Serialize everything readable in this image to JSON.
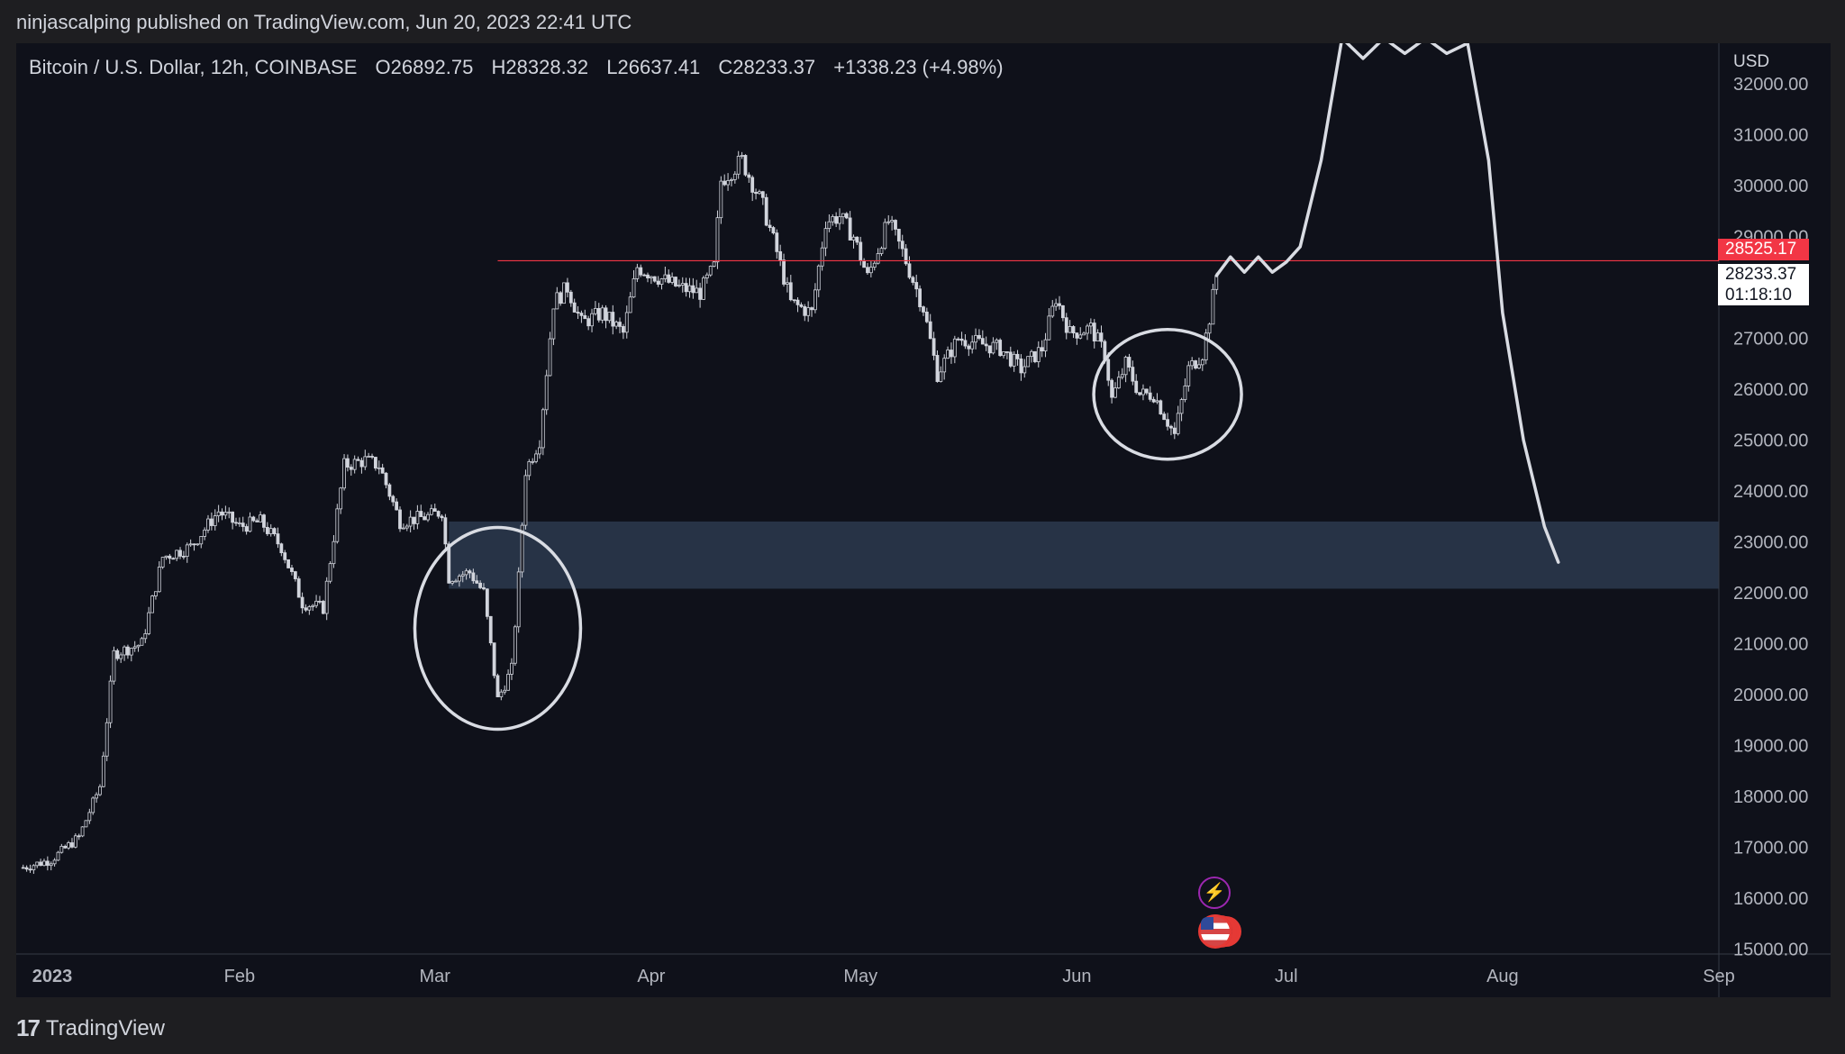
{
  "header": {
    "text": "ninjascalping published on TradingView.com, Jun 20, 2023 22:41 UTC"
  },
  "legend": {
    "symbol": "Bitcoin / U.S. Dollar, 12h, COINBASE",
    "open": "O26892.75",
    "high": "H28328.32",
    "low": "L26637.41",
    "close": "C28233.37",
    "change": "+1338.23 (+4.98%)"
  },
  "price_axis": {
    "currency": "USD"
  },
  "tags": {
    "resistance_price": "28525.17",
    "last_price": "28233.37",
    "countdown": "01:18:10"
  },
  "footer": {
    "brand": "TradingView",
    "logo_glyph": "17"
  },
  "colors": {
    "background": "#0f111a",
    "candle": "#d1d4dc",
    "resistance_line": "#f23645",
    "zone": "#2b3a4f",
    "drawing": "#d9dce3"
  },
  "chart_data": {
    "type": "candlestick",
    "timeframe": "12h",
    "y_ticks": [
      15000,
      16000,
      17000,
      18000,
      19000,
      20000,
      21000,
      22000,
      23000,
      24000,
      25000,
      26000,
      27000,
      28000,
      29000,
      30000,
      31000,
      32000
    ],
    "x_ticks": [
      "2023",
      "Feb",
      "Mar",
      "Apr",
      "May",
      "Jun",
      "Jul",
      "Aug",
      "Sep"
    ],
    "ylim": [
      14900,
      32800
    ],
    "resistance_line": 28525.17,
    "support_zone": [
      22080,
      23400
    ],
    "path_points": [
      [
        "2023-01-01",
        16600
      ],
      [
        "2023-01-05",
        16750
      ],
      [
        "2023-01-09",
        17200
      ],
      [
        "2023-01-12",
        18200
      ],
      [
        "2023-01-14",
        20800
      ],
      [
        "2023-01-18",
        21000
      ],
      [
        "2023-01-21",
        22700
      ],
      [
        "2023-01-25",
        22900
      ],
      [
        "2023-01-29",
        23600
      ],
      [
        "2023-02-01",
        23300
      ],
      [
        "2023-02-04",
        23400
      ],
      [
        "2023-02-07",
        22900
      ],
      [
        "2023-02-10",
        21800
      ],
      [
        "2023-02-13",
        21700
      ],
      [
        "2023-02-16",
        24500
      ],
      [
        "2023-02-19",
        24600
      ],
      [
        "2023-02-21",
        24500
      ],
      [
        "2023-02-24",
        23400
      ],
      [
        "2023-02-28",
        23500
      ],
      [
        "2023-03-02",
        23600
      ],
      [
        "2023-03-03",
        22300
      ],
      [
        "2023-03-06",
        22400
      ],
      [
        "2023-03-08",
        22000
      ],
      [
        "2023-03-10",
        19900
      ],
      [
        "2023-03-12",
        20500
      ],
      [
        "2023-03-13",
        22300
      ],
      [
        "2023-03-14",
        24400
      ],
      [
        "2023-03-16",
        25000
      ],
      [
        "2023-03-18",
        27700
      ],
      [
        "2023-03-20",
        28000
      ],
      [
        "2023-03-22",
        27300
      ],
      [
        "2023-03-25",
        27500
      ],
      [
        "2023-03-28",
        27100
      ],
      [
        "2023-03-30",
        28400
      ],
      [
        "2023-04-02",
        28200
      ],
      [
        "2023-04-05",
        28000
      ],
      [
        "2023-04-08",
        27900
      ],
      [
        "2023-04-10",
        28400
      ],
      [
        "2023-04-11",
        30100
      ],
      [
        "2023-04-14",
        30500
      ],
      [
        "2023-04-17",
        29600
      ],
      [
        "2023-04-19",
        28700
      ],
      [
        "2023-04-21",
        27700
      ],
      [
        "2023-04-24",
        27500
      ],
      [
        "2023-04-26",
        29300
      ],
      [
        "2023-04-28",
        29400
      ],
      [
        "2023-04-30",
        29000
      ],
      [
        "2023-05-02",
        28200
      ],
      [
        "2023-05-05",
        29300
      ],
      [
        "2023-05-07",
        28700
      ],
      [
        "2023-05-10",
        27600
      ],
      [
        "2023-05-12",
        26300
      ],
      [
        "2023-05-15",
        27000
      ],
      [
        "2023-05-18",
        26900
      ],
      [
        "2023-05-21",
        26800
      ],
      [
        "2023-05-24",
        26400
      ],
      [
        "2023-05-27",
        26800
      ],
      [
        "2023-05-29",
        27800
      ],
      [
        "2023-05-31",
        27100
      ],
      [
        "2023-06-03",
        27200
      ],
      [
        "2023-06-05",
        26700
      ],
      [
        "2023-06-06",
        25800
      ],
      [
        "2023-06-08",
        26500
      ],
      [
        "2023-06-10",
        25900
      ],
      [
        "2023-06-12",
        25900
      ],
      [
        "2023-06-15",
        25100
      ],
      [
        "2023-06-17",
        26400
      ],
      [
        "2023-06-19",
        26700
      ],
      [
        "2023-06-20",
        27400
      ],
      [
        "2023-06-21",
        28233.37
      ]
    ],
    "projection_points": [
      [
        "2023-06-21",
        28233
      ],
      [
        "2023-06-23",
        28600
      ],
      [
        "2023-06-25",
        28300
      ],
      [
        "2023-06-27",
        28600
      ],
      [
        "2023-06-29",
        28300
      ],
      [
        "2023-07-01",
        28500
      ],
      [
        "2023-07-03",
        28800
      ],
      [
        "2023-07-06",
        30500
      ],
      [
        "2023-07-09",
        32900
      ],
      [
        "2023-07-12",
        32500
      ],
      [
        "2023-07-15",
        32900
      ],
      [
        "2023-07-18",
        32600
      ],
      [
        "2023-07-21",
        32900
      ],
      [
        "2023-07-24",
        32600
      ],
      [
        "2023-07-27",
        32800
      ],
      [
        "2023-07-30",
        30500
      ],
      [
        "2023-08-01",
        27500
      ],
      [
        "2023-08-04",
        25000
      ],
      [
        "2023-08-07",
        23300
      ],
      [
        "2023-08-09",
        22600
      ]
    ]
  }
}
